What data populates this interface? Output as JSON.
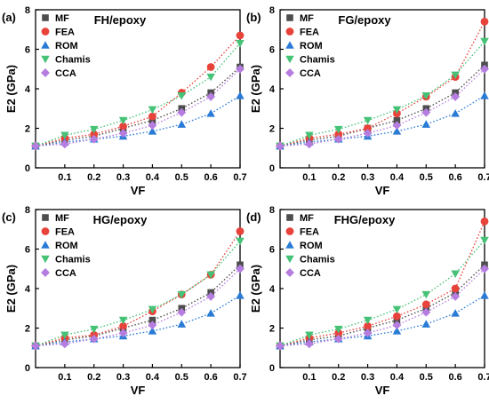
{
  "chart_data": [
    {
      "type": "scatter",
      "panel_label": "(a)",
      "title": "FH/epoxy",
      "xlabel": "VF",
      "ylabel": "E2 (GPa)",
      "xlim": [
        0,
        0.7
      ],
      "ylim": [
        0,
        8
      ],
      "xticks": [
        "0.1",
        "0.2",
        "0.3",
        "0.4",
        "0.5",
        "0.6",
        "0.7"
      ],
      "yticks": [
        "0",
        "2",
        "4",
        "6",
        "8"
      ],
      "legend_position": "top-left",
      "x": [
        0,
        0.1,
        0.2,
        0.3,
        0.4,
        0.5,
        0.6,
        0.7
      ],
      "series": [
        {
          "name": "MF",
          "marker": "square",
          "color": "#4d4d4d",
          "values": [
            1.1,
            1.4,
            1.6,
            2.0,
            2.4,
            3.0,
            3.8,
            5.1
          ]
        },
        {
          "name": "FEA",
          "marker": "circle",
          "color": "#e8433a",
          "values": [
            1.1,
            1.5,
            1.7,
            2.1,
            2.6,
            3.8,
            5.1,
            6.7
          ]
        },
        {
          "name": "ROM",
          "marker": "triangle-up",
          "color": "#2a7bd6",
          "values": [
            1.1,
            1.3,
            1.45,
            1.6,
            1.85,
            2.2,
            2.75,
            3.65
          ]
        },
        {
          "name": "Chamis",
          "marker": "triangle-down",
          "color": "#46c277",
          "values": [
            1.1,
            1.65,
            1.95,
            2.4,
            2.95,
            3.65,
            4.6,
            6.3
          ]
        },
        {
          "name": "CCA",
          "marker": "diamond",
          "color": "#b57de0",
          "values": [
            1.1,
            1.2,
            1.45,
            1.75,
            2.15,
            2.8,
            3.6,
            5.0
          ]
        }
      ]
    },
    {
      "type": "scatter",
      "panel_label": "(b)",
      "title": "FG/epoxy",
      "xlabel": "VF",
      "ylabel": "E2 (GPa)",
      "xlim": [
        0,
        0.7
      ],
      "ylim": [
        0,
        8
      ],
      "xticks": [
        "0.1",
        "0.2",
        "0.3",
        "0.4",
        "0.5",
        "0.6",
        "0.7"
      ],
      "yticks": [
        "0",
        "2",
        "4",
        "6",
        "8"
      ],
      "legend_position": "top-left",
      "x": [
        0,
        0.1,
        0.2,
        0.3,
        0.4,
        0.5,
        0.6,
        0.7
      ],
      "series": [
        {
          "name": "MF",
          "marker": "square",
          "color": "#4d4d4d",
          "values": [
            1.1,
            1.4,
            1.6,
            2.0,
            2.4,
            3.0,
            3.8,
            5.2
          ]
        },
        {
          "name": "FEA",
          "marker": "circle",
          "color": "#e8433a",
          "values": [
            1.1,
            1.5,
            1.7,
            2.0,
            2.75,
            3.6,
            4.6,
            7.4
          ]
        },
        {
          "name": "ROM",
          "marker": "triangle-up",
          "color": "#2a7bd6",
          "values": [
            1.1,
            1.3,
            1.45,
            1.6,
            1.85,
            2.2,
            2.75,
            3.65
          ]
        },
        {
          "name": "Chamis",
          "marker": "triangle-down",
          "color": "#46c277",
          "values": [
            1.1,
            1.65,
            1.95,
            2.4,
            2.95,
            3.65,
            4.7,
            6.4
          ]
        },
        {
          "name": "CCA",
          "marker": "diamond",
          "color": "#b57de0",
          "values": [
            1.1,
            1.2,
            1.45,
            1.75,
            2.15,
            2.8,
            3.6,
            5.0
          ]
        }
      ]
    },
    {
      "type": "scatter",
      "panel_label": "(c)",
      "title": "HG/epoxy",
      "xlabel": "VF",
      "ylabel": "E2 (GPa)",
      "xlim": [
        0,
        0.7
      ],
      "ylim": [
        0,
        8
      ],
      "xticks": [
        "0.1",
        "0.2",
        "0.3",
        "0.4",
        "0.5",
        "0.6",
        "0.7"
      ],
      "yticks": [
        "0",
        "2",
        "4",
        "6",
        "8"
      ],
      "legend_position": "top-left",
      "x": [
        0,
        0.1,
        0.2,
        0.3,
        0.4,
        0.5,
        0.6,
        0.7
      ],
      "series": [
        {
          "name": "MF",
          "marker": "square",
          "color": "#4d4d4d",
          "values": [
            1.1,
            1.4,
            1.6,
            2.0,
            2.4,
            3.0,
            3.8,
            5.2
          ]
        },
        {
          "name": "FEA",
          "marker": "circle",
          "color": "#e8433a",
          "values": [
            1.1,
            1.5,
            1.65,
            2.1,
            2.85,
            3.7,
            4.7,
            6.9
          ]
        },
        {
          "name": "ROM",
          "marker": "triangle-up",
          "color": "#2a7bd6",
          "values": [
            1.1,
            1.3,
            1.45,
            1.6,
            1.85,
            2.2,
            2.75,
            3.65
          ]
        },
        {
          "name": "Chamis",
          "marker": "triangle-down",
          "color": "#46c277",
          "values": [
            1.1,
            1.65,
            1.95,
            2.4,
            2.95,
            3.7,
            4.7,
            6.4
          ]
        },
        {
          "name": "CCA",
          "marker": "diamond",
          "color": "#b57de0",
          "values": [
            1.1,
            1.2,
            1.45,
            1.75,
            2.15,
            2.8,
            3.6,
            5.0
          ]
        }
      ]
    },
    {
      "type": "scatter",
      "panel_label": "(d)",
      "title": "FHG/epoxy",
      "xlabel": "VF",
      "ylabel": "E2 (GPa)",
      "xlim": [
        0,
        0.7
      ],
      "ylim": [
        0,
        8
      ],
      "xticks": [
        "0.1",
        "0.2",
        "0.3",
        "0.4",
        "0.5",
        "0.6",
        "0.7"
      ],
      "yticks": [
        "0",
        "2",
        "4",
        "6",
        "8"
      ],
      "legend_position": "top-left",
      "x": [
        0,
        0.1,
        0.2,
        0.3,
        0.4,
        0.5,
        0.6,
        0.7
      ],
      "series": [
        {
          "name": "MF",
          "marker": "square",
          "color": "#4d4d4d",
          "values": [
            1.1,
            1.4,
            1.6,
            2.0,
            2.4,
            3.0,
            3.8,
            5.2
          ]
        },
        {
          "name": "FEA",
          "marker": "circle",
          "color": "#e8433a",
          "values": [
            1.1,
            1.5,
            1.75,
            2.1,
            2.6,
            3.2,
            4.0,
            7.4
          ]
        },
        {
          "name": "ROM",
          "marker": "triangle-up",
          "color": "#2a7bd6",
          "values": [
            1.1,
            1.3,
            1.45,
            1.6,
            1.85,
            2.2,
            2.75,
            3.65
          ]
        },
        {
          "name": "Chamis",
          "marker": "triangle-down",
          "color": "#46c277",
          "values": [
            1.1,
            1.65,
            1.95,
            2.4,
            2.95,
            3.7,
            4.75,
            6.45
          ]
        },
        {
          "name": "CCA",
          "marker": "diamond",
          "color": "#b57de0",
          "values": [
            1.1,
            1.2,
            1.45,
            1.75,
            2.15,
            2.8,
            3.6,
            5.0
          ]
        }
      ]
    }
  ]
}
